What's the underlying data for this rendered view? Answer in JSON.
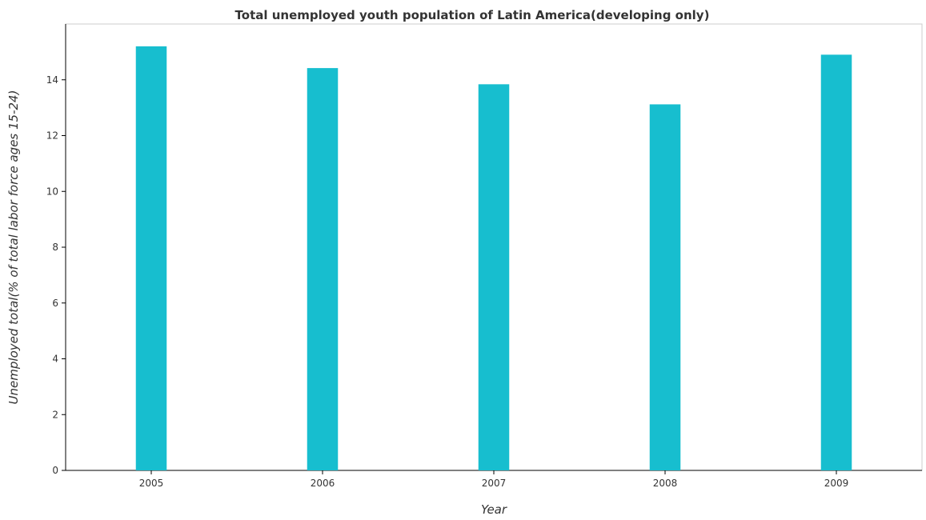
{
  "chart_data": {
    "type": "bar",
    "title": "Total unemployed youth population of Latin America(developing only)",
    "xlabel": "Year",
    "ylabel": "Unemployed total(% of total labor force ages 15-24)",
    "categories": [
      "2005",
      "2006",
      "2007",
      "2008",
      "2009"
    ],
    "values": [
      15.2,
      14.42,
      13.84,
      13.12,
      14.9
    ],
    "ylim": [
      0,
      16
    ],
    "yticks": [
      0,
      2,
      4,
      6,
      8,
      10,
      12,
      14
    ],
    "ytick_labels": [
      "0",
      "2",
      "4",
      "6",
      "8",
      "10",
      "12",
      "14"
    ],
    "bar_color": "#17becf",
    "grid": false,
    "legend": "none"
  }
}
